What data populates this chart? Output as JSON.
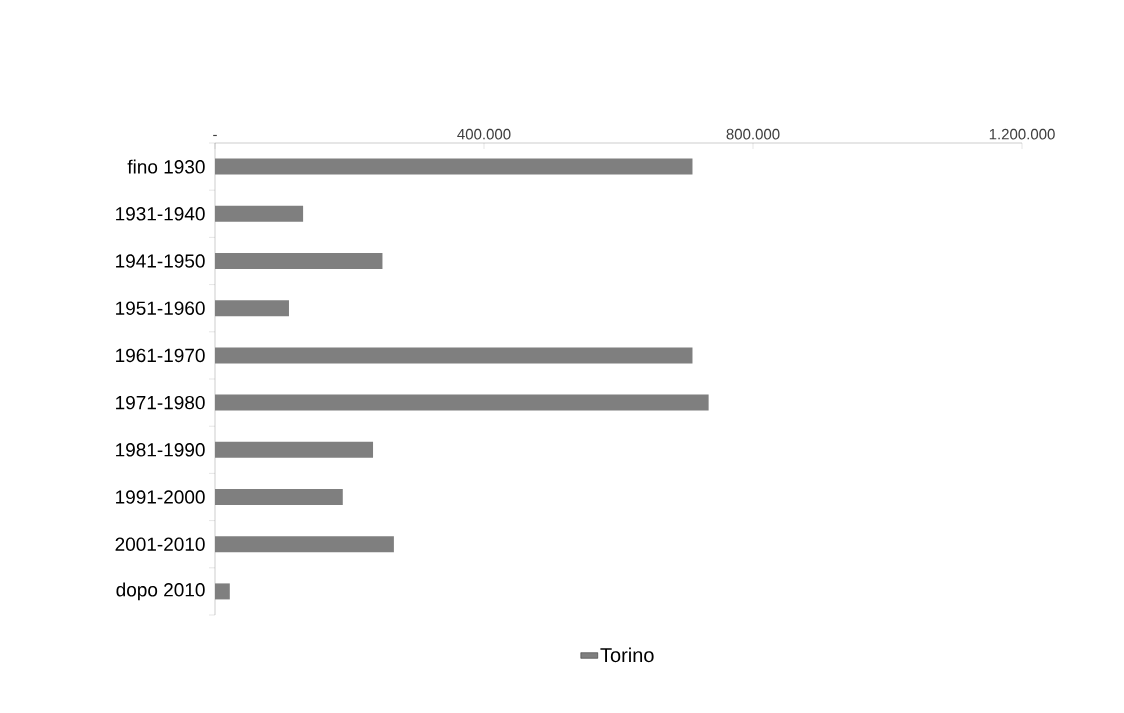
{
  "chart_data": {
    "type": "bar",
    "orientation": "horizontal",
    "categories": [
      "fino 1930",
      "1931-1940",
      "1941-1950",
      "1951-1960",
      "1961-1970",
      "1971-1980",
      "1981-1990",
      "1991-2000",
      "2001-2010",
      "dopo 2010"
    ],
    "series": [
      {
        "name": "Torino",
        "color": "#7f7f7f",
        "values": [
          710000,
          131000,
          249000,
          110000,
          710000,
          734000,
          235000,
          190000,
          266000,
          22000
        ]
      }
    ],
    "xlim": [
      0,
      1200000
    ],
    "xticks": [
      {
        "value": 0,
        "label": "-"
      },
      {
        "value": 400000,
        "label": "400.000"
      },
      {
        "value": 800000,
        "label": "800.000"
      },
      {
        "value": 1200000,
        "label": "1.200.000"
      }
    ],
    "grid": false,
    "legend": "bottom"
  }
}
